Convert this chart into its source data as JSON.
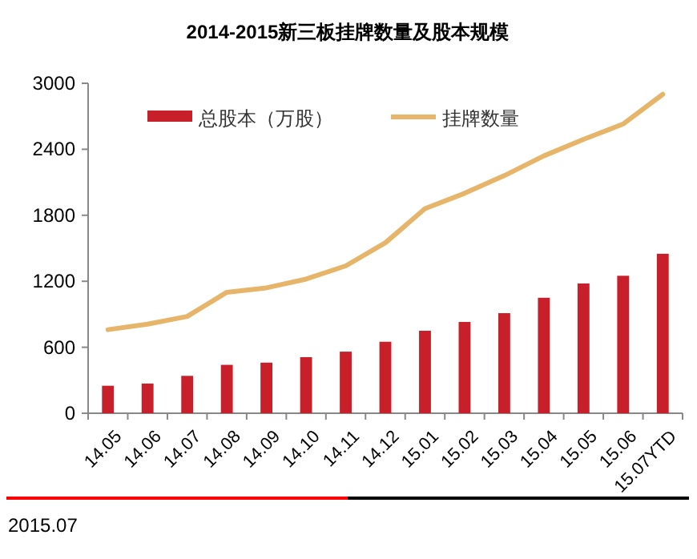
{
  "chart_data": {
    "type": "bar",
    "title": "2014-2015新三板挂牌数量及股本规模",
    "categories": [
      "14.05",
      "14.06",
      "14.07",
      "14.08",
      "14.09",
      "14.10",
      "14.11",
      "14.12",
      "15.01",
      "15.02",
      "15.03",
      "15.04",
      "15.05",
      "15.06",
      "15.07YTD"
    ],
    "series": [
      {
        "name": "总股本（万股）",
        "color": "#c8202a",
        "values": [
          250,
          270,
          340,
          440,
          460,
          510,
          560,
          650,
          750,
          830,
          910,
          1050,
          1180,
          1250,
          1450
        ]
      },
      {
        "name": "挂牌数量",
        "type": "line",
        "color": "#e6b56a",
        "values": [
          760,
          810,
          880,
          1100,
          1140,
          1220,
          1340,
          1550,
          1860,
          2000,
          2160,
          2340,
          2490,
          2630,
          2900
        ]
      }
    ],
    "ylim": [
      0,
      3000
    ],
    "yticks": [
      0,
      600,
      1200,
      1800,
      2400,
      3000
    ],
    "grid": false,
    "legend": "top",
    "marker": "none",
    "line_style": "solid",
    "annotations": [
      "2015.07"
    ]
  }
}
